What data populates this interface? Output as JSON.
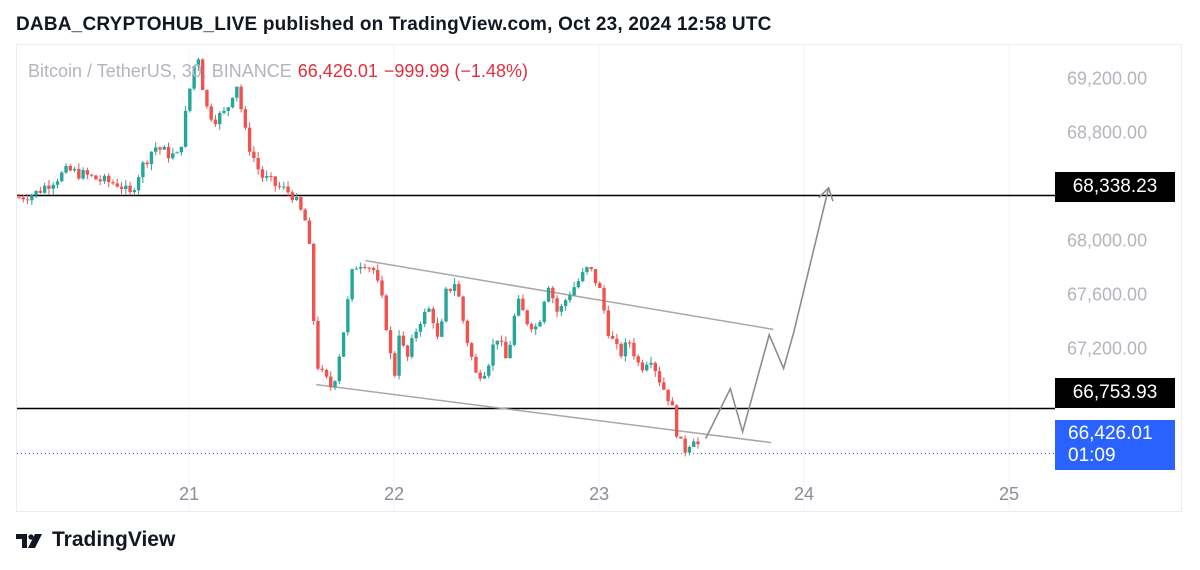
{
  "header": {
    "published_text": "DABA_CRYPTOHUB_LIVE published on TradingView.com, Oct 23, 2024 12:58 UTC"
  },
  "legend": {
    "symbol": "Bitcoin / TetherUS, 30, BINANCE",
    "price": "66,426.01",
    "change": "−999.99 (−1.48%)"
  },
  "price_tags": {
    "resistance": "68,338.23",
    "support": "66,753.93",
    "last_price": "66,426.01",
    "countdown": "01:09"
  },
  "footer": {
    "brand": "TradingView"
  },
  "colors": {
    "up": "#26a69a",
    "down": "#ef5350",
    "level_line": "#000000",
    "channel": "#a8a8a8",
    "projection": "#8c8c8c",
    "last_price": "#2962ff"
  },
  "chart_data": {
    "type": "candlestick",
    "title": "Bitcoin / TetherUS, 30, BINANCE",
    "x_ticks": [
      "21",
      "22",
      "23",
      "24",
      "25"
    ],
    "y_ticks": [
      69200,
      68800,
      68400,
      68000,
      67600,
      67200
    ],
    "y_tick_labels": [
      "69,200.00",
      "68,800.00",
      "68,400.00",
      "68,000.00",
      "67,600.00",
      "67,200.00"
    ],
    "ylim": [
      66000,
      69450
    ],
    "xlim": [
      20.16,
      25.2
    ],
    "horizontal_levels": [
      68338.23,
      66753.93
    ],
    "last_price": 66426.01,
    "close_series_points": [
      [
        20.17,
        68320
      ],
      [
        20.25,
        68350
      ],
      [
        20.33,
        68440
      ],
      [
        20.41,
        68520
      ],
      [
        20.5,
        68480
      ],
      [
        20.58,
        68440
      ],
      [
        20.66,
        68420
      ],
      [
        20.71,
        68330
      ],
      [
        20.76,
        68520
      ],
      [
        20.83,
        68700
      ],
      [
        20.9,
        68640
      ],
      [
        20.95,
        68620
      ],
      [
        21.0,
        69100
      ],
      [
        21.04,
        69420
      ],
      [
        21.08,
        69000
      ],
      [
        21.12,
        68900
      ],
      [
        21.18,
        68950
      ],
      [
        21.23,
        69180
      ],
      [
        21.28,
        68750
      ],
      [
        21.35,
        68480
      ],
      [
        21.43,
        68400
      ],
      [
        21.5,
        68350
      ],
      [
        21.53,
        68260
      ],
      [
        21.58,
        68100
      ],
      [
        21.6,
        67600
      ],
      [
        21.62,
        67100
      ],
      [
        21.65,
        67000
      ],
      [
        21.7,
        66900
      ],
      [
        21.75,
        67300
      ],
      [
        21.8,
        67800
      ],
      [
        21.85,
        67850
      ],
      [
        21.9,
        67780
      ],
      [
        21.95,
        67500
      ],
      [
        22.0,
        66950
      ],
      [
        22.02,
        67350
      ],
      [
        22.06,
        67100
      ],
      [
        22.12,
        67400
      ],
      [
        22.18,
        67500
      ],
      [
        22.22,
        67200
      ],
      [
        22.25,
        67600
      ],
      [
        22.3,
        67700
      ],
      [
        22.35,
        67300
      ],
      [
        22.4,
        67000
      ],
      [
        22.45,
        67050
      ],
      [
        22.5,
        67300
      ],
      [
        22.55,
        67100
      ],
      [
        22.6,
        67550
      ],
      [
        22.65,
        67400
      ],
      [
        22.7,
        67350
      ],
      [
        22.75,
        67700
      ],
      [
        22.8,
        67450
      ],
      [
        22.85,
        67600
      ],
      [
        22.9,
        67700
      ],
      [
        22.95,
        67800
      ],
      [
        23.0,
        67650
      ],
      [
        23.05,
        67300
      ],
      [
        23.1,
        67150
      ],
      [
        23.15,
        67250
      ],
      [
        23.2,
        67050
      ],
      [
        23.25,
        67150
      ],
      [
        23.3,
        66950
      ],
      [
        23.35,
        66800
      ],
      [
        23.39,
        66500
      ],
      [
        23.42,
        66450
      ],
      [
        23.46,
        66550
      ],
      [
        23.5,
        66430
      ]
    ],
    "channel_upper": [
      [
        21.86,
        67850
      ],
      [
        23.85,
        67340
      ]
    ],
    "channel_lower": [
      [
        21.62,
        66930
      ],
      [
        23.84,
        66500
      ]
    ],
    "projection": [
      [
        23.52,
        66530
      ],
      [
        23.64,
        66900
      ],
      [
        23.7,
        66580
      ],
      [
        23.83,
        67300
      ],
      [
        23.9,
        67050
      ],
      [
        23.95,
        67320
      ],
      [
        24.12,
        68390
      ]
    ]
  }
}
